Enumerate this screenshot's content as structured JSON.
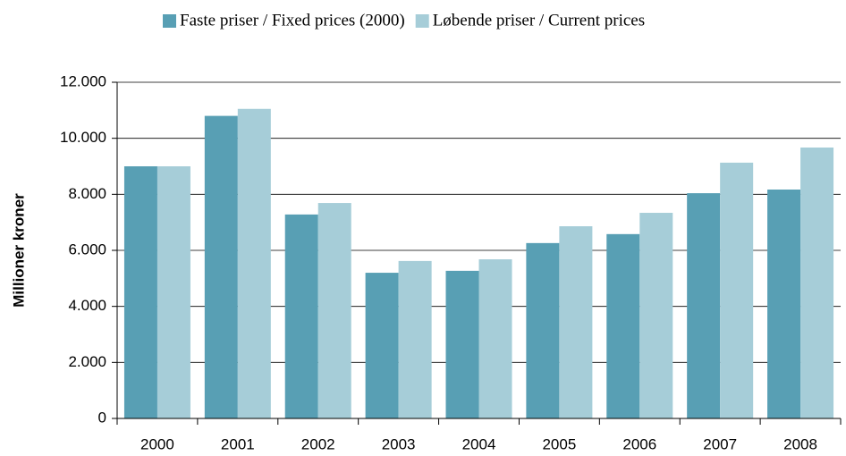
{
  "chart_data": {
    "type": "bar",
    "y_label": "Millioner kroner",
    "categories": [
      "2000",
      "2001",
      "2002",
      "2003",
      "2004",
      "2005",
      "2006",
      "2007",
      "2008"
    ],
    "series": [
      {
        "name": "Faste priser / Fixed prices (2000)",
        "color": "#589fb4",
        "values": [
          9000,
          10800,
          7280,
          5200,
          5270,
          6260,
          6580,
          8040,
          8170
        ]
      },
      {
        "name": "Løbende priser / Current prices",
        "color": "#a6cdd8",
        "values": [
          9000,
          11050,
          7690,
          5620,
          5680,
          6860,
          7340,
          9130,
          9670
        ]
      }
    ],
    "ylim": [
      0,
      12000
    ],
    "yticks": [
      0,
      {
        "value": 2000,
        "label": "2.000"
      },
      {
        "value": 4000,
        "label": "4.000"
      },
      {
        "value": 6000,
        "label": "6.000"
      },
      {
        "value": 8000,
        "label": "8.000"
      },
      {
        "value": 10000,
        "label": "10.000"
      },
      {
        "value": 12000,
        "label": "12.000"
      }
    ],
    "grid": true
  }
}
